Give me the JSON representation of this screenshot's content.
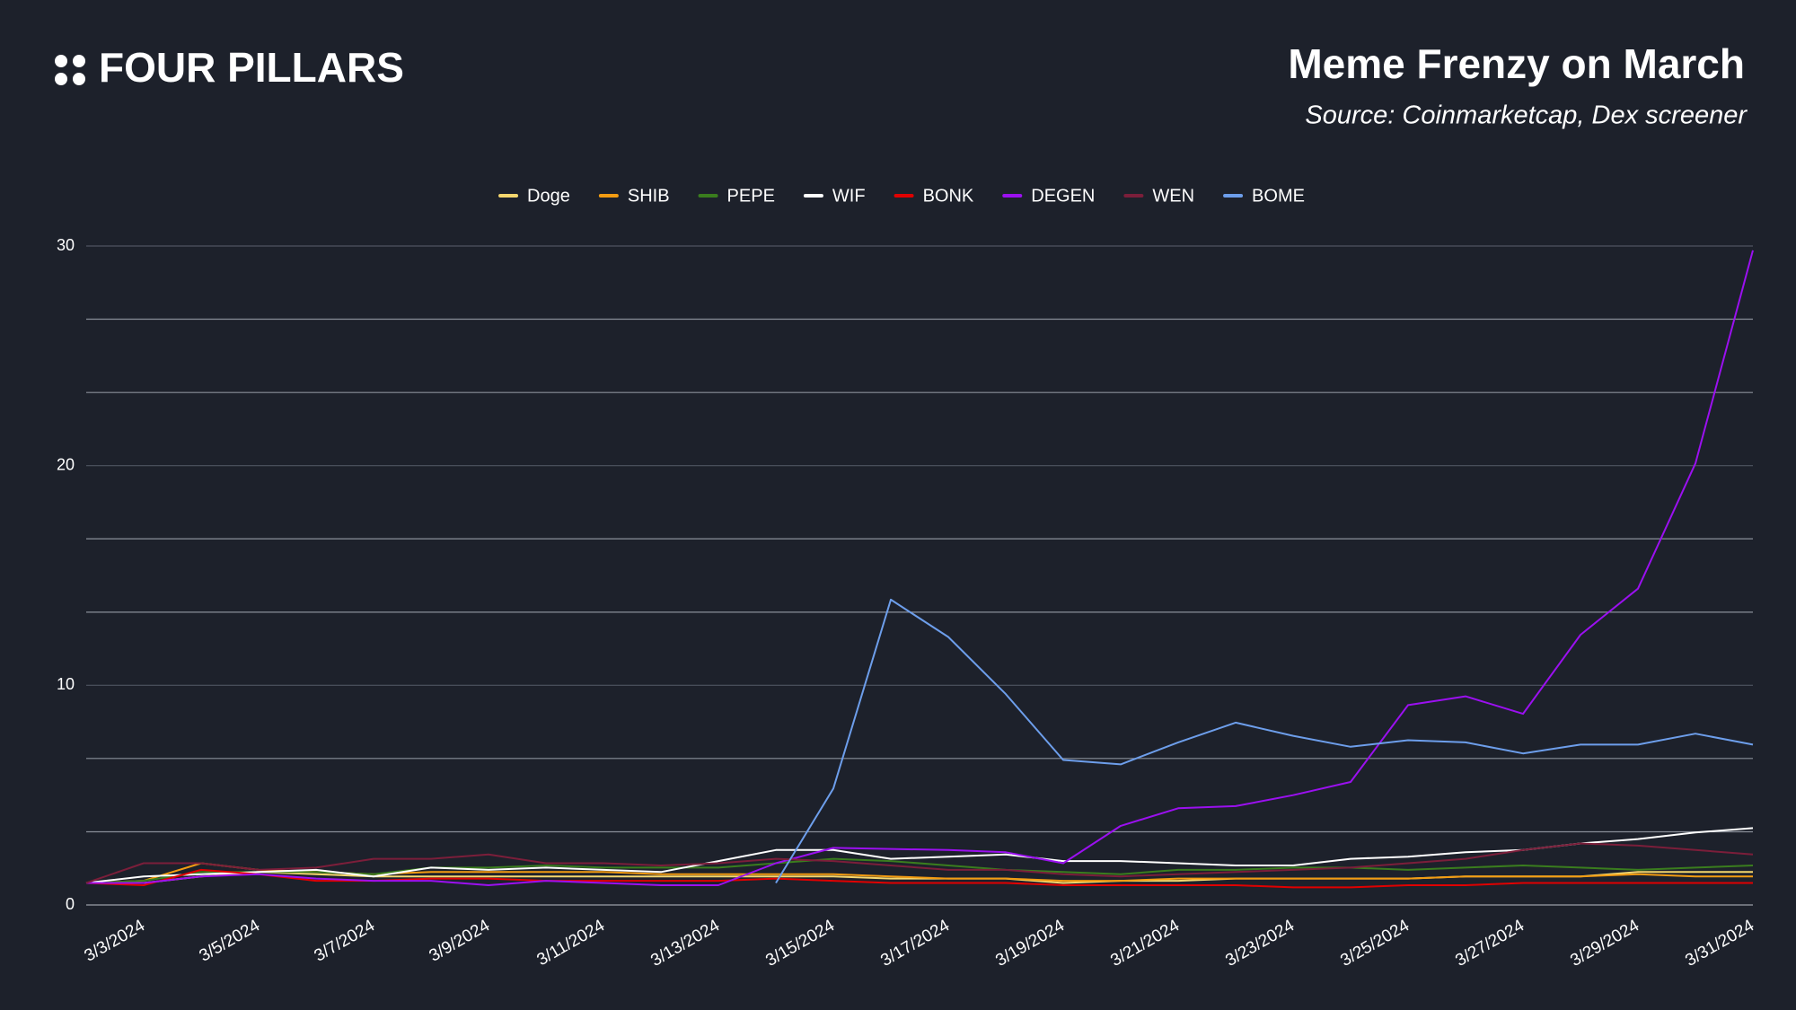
{
  "brand": "FOUR PILLARS",
  "chart_data": {
    "type": "line",
    "title": "Meme Frenzy on March",
    "subtitle": "Source: Coinmarketcap, Dex screener",
    "categories": [
      null,
      "3/3/2024",
      null,
      "3/5/2024",
      null,
      "3/7/2024",
      null,
      "3/9/2024",
      null,
      "3/11/2024",
      null,
      "3/13/2024",
      null,
      "3/15/2024",
      null,
      "3/17/2024",
      null,
      "3/19/2024",
      null,
      "3/21/2024",
      null,
      "3/23/2024",
      null,
      "3/25/2024",
      null,
      "3/27/2024",
      null,
      "3/29/2024",
      null,
      "3/31/2024"
    ],
    "series": [
      {
        "name": "Doge",
        "color": "#f5d76e",
        "values": [
          1.0,
          1.0,
          1.3,
          1.5,
          1.4,
          1.3,
          1.3,
          1.3,
          1.3,
          1.3,
          1.3,
          1.3,
          1.3,
          1.3,
          1.2,
          1.2,
          1.2,
          1.0,
          1.1,
          1.1,
          1.2,
          1.2,
          1.2,
          1.2,
          1.3,
          1.3,
          1.3,
          1.5,
          1.5,
          1.5
        ]
      },
      {
        "name": "SHIB",
        "color": "#f39c12",
        "values": [
          1.0,
          1.1,
          1.9,
          1.6,
          1.5,
          1.4,
          1.5,
          1.5,
          1.5,
          1.5,
          1.4,
          1.4,
          1.4,
          1.4,
          1.3,
          1.2,
          1.2,
          1.1,
          1.1,
          1.2,
          1.2,
          1.2,
          1.2,
          1.2,
          1.3,
          1.3,
          1.3,
          1.4,
          1.3,
          1.3
        ]
      },
      {
        "name": "PEPE",
        "color": "#3a7d1e",
        "values": [
          1.0,
          1.1,
          1.5,
          1.5,
          1.5,
          1.4,
          1.7,
          1.7,
          1.8,
          1.7,
          1.7,
          1.7,
          1.9,
          2.1,
          2.0,
          1.8,
          1.6,
          1.5,
          1.4,
          1.6,
          1.6,
          1.7,
          1.7,
          1.6,
          1.7,
          1.8,
          1.7,
          1.6,
          1.7,
          1.8
        ]
      },
      {
        "name": "WIF",
        "color": "#ffffff",
        "values": [
          1.0,
          1.3,
          1.4,
          1.5,
          1.6,
          1.3,
          1.7,
          1.6,
          1.7,
          1.6,
          1.5,
          2.0,
          2.5,
          2.5,
          2.1,
          2.2,
          2.3,
          2.0,
          2.0,
          1.9,
          1.8,
          1.8,
          2.1,
          2.2,
          2.4,
          2.5,
          2.8,
          3.0,
          3.3,
          3.5
        ]
      },
      {
        "name": "BONK",
        "color": "#e00000",
        "values": [
          1.0,
          0.9,
          1.6,
          1.4,
          1.1,
          1.1,
          1.2,
          1.2,
          1.1,
          1.1,
          1.1,
          1.1,
          1.2,
          1.1,
          1.0,
          1.0,
          1.0,
          0.9,
          0.9,
          0.9,
          0.9,
          0.8,
          0.8,
          0.9,
          0.9,
          1.0,
          1.0,
          1.0,
          1.0,
          1.0
        ]
      },
      {
        "name": "DEGEN",
        "color": "#9b10f0",
        "values": [
          1.0,
          1.0,
          1.3,
          1.4,
          1.2,
          1.1,
          1.1,
          0.9,
          1.1,
          1.0,
          0.9,
          0.9,
          1.9,
          2.6,
          2.55,
          2.5,
          2.4,
          1.9,
          3.6,
          4.4,
          4.5,
          5.0,
          5.6,
          9.1,
          9.5,
          8.7,
          12.3,
          14.4,
          20.1,
          29.8
        ]
      },
      {
        "name": "WEN",
        "color": "#7b1e3a",
        "values": [
          1.0,
          1.9,
          1.9,
          1.6,
          1.7,
          2.1,
          2.1,
          2.3,
          1.9,
          1.9,
          1.8,
          1.9,
          2.1,
          2.0,
          1.8,
          1.6,
          1.6,
          1.4,
          1.3,
          1.4,
          1.5,
          1.6,
          1.7,
          1.9,
          2.1,
          2.5,
          2.8,
          2.7,
          2.5,
          2.3
        ]
      },
      {
        "name": "BOME",
        "color": "#6d9eeb",
        "values": [
          null,
          null,
          null,
          null,
          null,
          null,
          null,
          null,
          null,
          null,
          null,
          null,
          1.0,
          5.3,
          13.9,
          12.2,
          9.6,
          6.6,
          6.4,
          7.4,
          8.3,
          7.7,
          7.2,
          7.5,
          7.4,
          6.9,
          7.3,
          7.3,
          7.8,
          7.3
        ]
      }
    ],
    "ylim": [
      0,
      30
    ],
    "yticks": [
      0,
      10,
      20,
      30
    ],
    "minor_yticks": [
      3.33,
      6.67,
      13.33,
      16.67,
      23.33,
      26.67
    ],
    "grid": true,
    "legend": "top"
  }
}
